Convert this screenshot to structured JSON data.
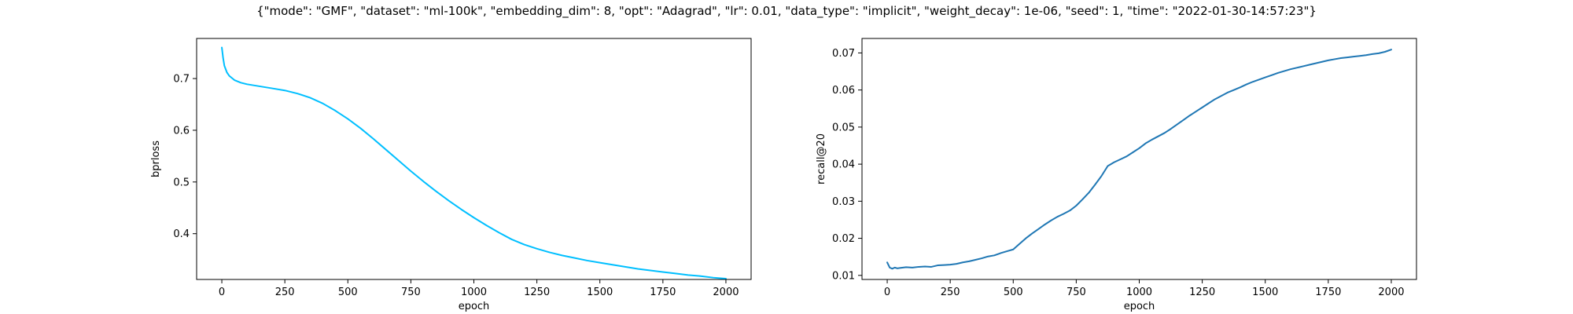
{
  "figure": {
    "suptitle": "{\"mode\": \"GMF\", \"dataset\": \"ml-100k\", \"embedding_dim\": 8, \"opt\": \"Adagrad\", \"lr\": 0.01, \"data_type\": \"implicit\", \"weight_decay\": 1e-06, \"seed\": 1, \"time\": \"2022-01-30-14:57:23\"}"
  },
  "chart_data": [
    {
      "type": "line",
      "xlabel": "epoch",
      "ylabel": "bprloss",
      "xlim": [
        -100,
        2100
      ],
      "ylim": [
        0.3115,
        0.7775
      ],
      "xticks": [
        0,
        250,
        500,
        750,
        1000,
        1250,
        1500,
        1750,
        2000
      ],
      "yticks": [
        0.4,
        0.5,
        0.6,
        0.7
      ],
      "grid": false,
      "series": [
        {
          "color": "#00bfff",
          "x": [
            0,
            5,
            10,
            20,
            30,
            50,
            75,
            100,
            150,
            200,
            250,
            300,
            350,
            400,
            450,
            500,
            550,
            600,
            650,
            700,
            750,
            800,
            850,
            900,
            950,
            1000,
            1050,
            1100,
            1150,
            1200,
            1250,
            1300,
            1350,
            1400,
            1450,
            1500,
            1550,
            1600,
            1650,
            1700,
            1750,
            1800,
            1850,
            1900,
            1950,
            2000
          ],
          "y": [
            0.76,
            0.74,
            0.725,
            0.712,
            0.705,
            0.697,
            0.692,
            0.689,
            0.685,
            0.681,
            0.677,
            0.671,
            0.663,
            0.652,
            0.638,
            0.622,
            0.604,
            0.584,
            0.563,
            0.542,
            0.521,
            0.501,
            0.482,
            0.464,
            0.447,
            0.431,
            0.416,
            0.402,
            0.389,
            0.379,
            0.371,
            0.364,
            0.358,
            0.353,
            0.348,
            0.344,
            0.34,
            0.336,
            0.332,
            0.329,
            0.326,
            0.323,
            0.32,
            0.318,
            0.315,
            0.313
          ]
        }
      ]
    },
    {
      "type": "line",
      "xlabel": "epoch",
      "ylabel": "recall@20",
      "xlim": [
        -100,
        2100
      ],
      "ylim": [
        0.0089,
        0.0739
      ],
      "xticks": [
        0,
        250,
        500,
        750,
        1000,
        1250,
        1500,
        1750,
        2000
      ],
      "yticks": [
        0.01,
        0.02,
        0.03,
        0.04,
        0.05,
        0.06,
        0.07
      ],
      "grid": false,
      "series": [
        {
          "color": "#1f77b4",
          "x": [
            0,
            5,
            10,
            20,
            30,
            40,
            50,
            75,
            100,
            125,
            150,
            175,
            200,
            225,
            250,
            275,
            300,
            325,
            350,
            375,
            400,
            425,
            450,
            475,
            500,
            525,
            550,
            575,
            600,
            625,
            650,
            675,
            700,
            725,
            750,
            775,
            800,
            825,
            850,
            875,
            900,
            925,
            950,
            975,
            1000,
            1025,
            1050,
            1075,
            1100,
            1125,
            1150,
            1175,
            1200,
            1225,
            1250,
            1275,
            1300,
            1325,
            1350,
            1375,
            1400,
            1425,
            1450,
            1475,
            1500,
            1525,
            1550,
            1575,
            1600,
            1625,
            1650,
            1675,
            1700,
            1725,
            1750,
            1775,
            1800,
            1825,
            1850,
            1875,
            1900,
            1925,
            1950,
            1975,
            2000
          ],
          "y": [
            0.0135,
            0.0128,
            0.0121,
            0.0118,
            0.0121,
            0.0119,
            0.012,
            0.0122,
            0.0121,
            0.0123,
            0.0124,
            0.0123,
            0.0127,
            0.0128,
            0.0129,
            0.0131,
            0.0135,
            0.0138,
            0.0142,
            0.0146,
            0.0151,
            0.0154,
            0.016,
            0.0165,
            0.017,
            0.0185,
            0.02,
            0.0213,
            0.0225,
            0.0237,
            0.0248,
            0.0258,
            0.0266,
            0.0275,
            0.0288,
            0.0305,
            0.0323,
            0.0345,
            0.0368,
            0.0395,
            0.0405,
            0.0413,
            0.0421,
            0.0432,
            0.0443,
            0.0456,
            0.0466,
            0.0475,
            0.0484,
            0.0495,
            0.0507,
            0.0519,
            0.0531,
            0.0542,
            0.0553,
            0.0564,
            0.0575,
            0.0584,
            0.0593,
            0.06,
            0.0607,
            0.0615,
            0.0622,
            0.0628,
            0.0634,
            0.064,
            0.0646,
            0.0651,
            0.0656,
            0.066,
            0.0664,
            0.0668,
            0.0672,
            0.0676,
            0.068,
            0.0683,
            0.0686,
            0.0688,
            0.069,
            0.0692,
            0.0694,
            0.0697,
            0.0699,
            0.0703,
            0.0709
          ]
        }
      ]
    }
  ]
}
